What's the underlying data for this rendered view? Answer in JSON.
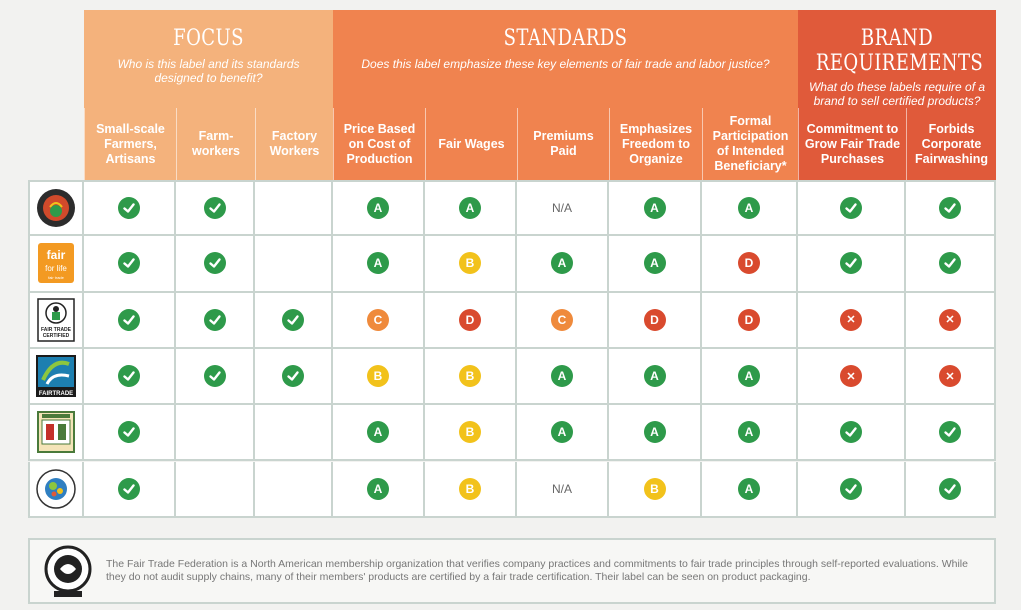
{
  "groups": {
    "focus": {
      "title": "FOCUS",
      "subtitle": "Who is this label and its standards designed to benefit?"
    },
    "standards": {
      "title": "STANDARDS",
      "subtitle": "Does this label emphasize these key elements of fair trade and labor justice?"
    },
    "brand": {
      "title": "BRAND REQUIREMENTS",
      "subtitle": "What do these labels require of a brand to sell certified products?"
    }
  },
  "columns": [
    "Small-scale Farmers, Artisans",
    "Farm-workers",
    "Factory Workers",
    "Price Based on Cost of Production",
    "Fair Wages",
    "Premiums Paid",
    "Emphasizes Freedom to Organize",
    "Formal Participation of Intended Beneficiary*",
    "Commitment to Grow Fair Trade Purchases",
    "Forbids Corporate Fairwashing"
  ],
  "rows": [
    {
      "logo": "small-producer-symbol-logo",
      "cells": [
        "check",
        "check",
        "",
        "A",
        "A",
        "N/A",
        "A",
        "A",
        "check",
        "check"
      ]
    },
    {
      "logo": "fair-for-life-logo",
      "logo_text": [
        "fair",
        "for life",
        "fair trade"
      ],
      "cells": [
        "check",
        "check",
        "",
        "A",
        "B",
        "A",
        "A",
        "D",
        "check",
        "check"
      ]
    },
    {
      "logo": "fair-trade-certified-logo",
      "logo_text": [
        "FAIR TRADE",
        "CERTIFIED"
      ],
      "cells": [
        "check",
        "check",
        "check",
        "C",
        "D",
        "C",
        "D",
        "D",
        "X",
        "X"
      ]
    },
    {
      "logo": "fairtrade-logo",
      "logo_text": [
        "FAIRTRADE"
      ],
      "cells": [
        "check",
        "check",
        "check",
        "B",
        "B",
        "A",
        "A",
        "A",
        "X",
        "X"
      ]
    },
    {
      "logo": "small-producers-label-logo",
      "cells": [
        "check",
        "",
        "",
        "A",
        "B",
        "A",
        "A",
        "A",
        "check",
        "check"
      ]
    },
    {
      "logo": "world-fair-trade-organization-logo",
      "cells": [
        "check",
        "",
        "",
        "A",
        "B",
        "N/A",
        "B",
        "A",
        "check",
        "check"
      ]
    }
  ],
  "footer": {
    "logo": "fair-trade-federation-member-logo",
    "text": "The Fair Trade Federation is a North American membership organization that verifies company practices and commitments to fair trade principles through self-reported evaluations. While they do not audit supply chains, many of their members' products are certified by a fair trade certification. Their label can be seen on product packaging."
  },
  "colors": {
    "focus": "#f4b27c",
    "standards": "#f0834f",
    "brand": "#e05a3a",
    "green": "#2e9a4a",
    "yellow": "#f2c21b",
    "orange": "#ef8a3c",
    "red": "#d94a2e"
  }
}
